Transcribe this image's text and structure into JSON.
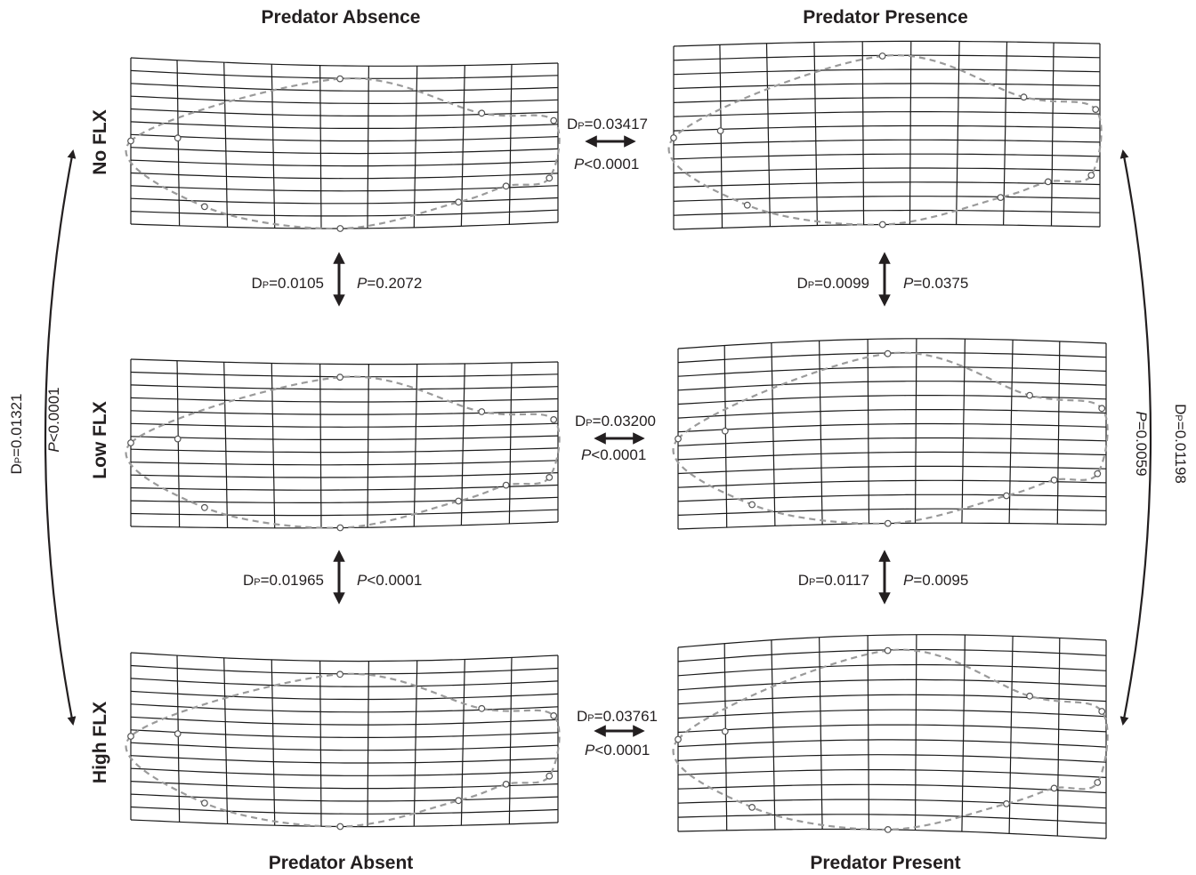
{
  "column_headers": {
    "top_left": "Predator Absence",
    "top_right": "Predator Presence",
    "bottom_left": "Predator Absent",
    "bottom_right": "Predator Present"
  },
  "row_headers": [
    "No FLX",
    "Low FLX",
    "High FLX"
  ],
  "comparisons": {
    "no_abs_vs_pres": {
      "d": "0.03417",
      "p": "<0.0001"
    },
    "low_abs_vs_pres": {
      "d": "0.03200",
      "p": "<0.0001"
    },
    "high_abs_vs_pres": {
      "d": "0.03761",
      "p": "<0.0001"
    },
    "abs_no_vs_low": {
      "d": "0.0105",
      "p": "=0.2072"
    },
    "abs_low_vs_high": {
      "d": "0.01965",
      "p": "<0.0001"
    },
    "pres_no_vs_low": {
      "d": "0.0099",
      "p": "=0.0375"
    },
    "pres_low_vs_high": {
      "d": "0.0117",
      "p": "=0.0095"
    },
    "abs_no_vs_high": {
      "d": "0.01321",
      "p": "<0.0001"
    },
    "pres_no_vs_high": {
      "d": "0.01198",
      "p": "=0.0059"
    }
  },
  "stat_labels": {
    "d_main": "D",
    "d_sub": "P",
    "p_letter": "P"
  },
  "colors": {
    "grid": "#1a1a1a",
    "outline": "#9a9a9a",
    "text": "#231f20"
  }
}
